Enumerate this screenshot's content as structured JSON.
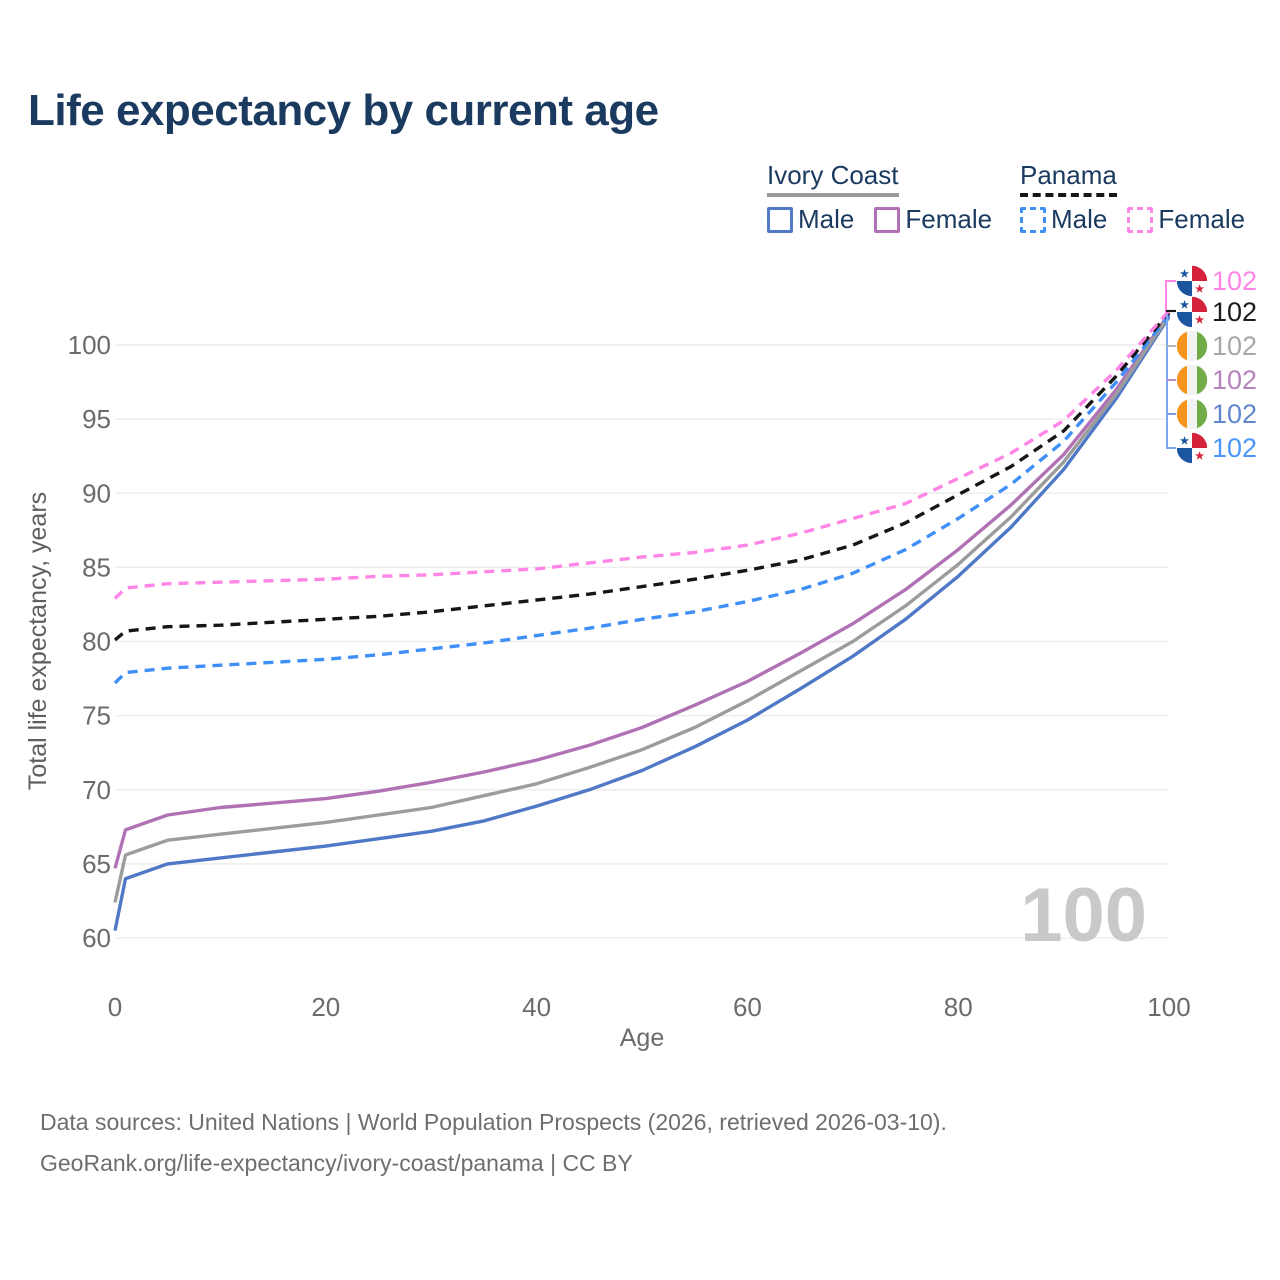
{
  "title": "Life expectancy by current age",
  "legend": {
    "groups": [
      {
        "label": "Ivory Coast",
        "style": "solid",
        "underline_color": "#999999",
        "items": [
          {
            "label": "Male",
            "color": "#4f79c7",
            "dashed": false
          },
          {
            "label": "Female",
            "color": "#b171b5",
            "dashed": false
          }
        ]
      },
      {
        "label": "Panama",
        "style": "dashed",
        "underline_color": "#161616",
        "items": [
          {
            "label": "Male",
            "color": "#3f8ff8",
            "dashed": true
          },
          {
            "label": "Female",
            "color": "#ff85e6",
            "dashed": true
          }
        ]
      }
    ]
  },
  "chart_data": {
    "type": "line",
    "title": "Life expectancy by current age",
    "xlabel": "Age",
    "ylabel": "Total life expectancy, years",
    "xlim": [
      0,
      100
    ],
    "ylim": [
      58,
      103
    ],
    "xticks": [
      0,
      20,
      40,
      60,
      80,
      100
    ],
    "yticks": [
      60,
      65,
      70,
      75,
      80,
      85,
      90,
      95,
      100
    ],
    "grid": "horizontal",
    "legend_position": "top-right",
    "watermark": "100",
    "x": [
      0,
      1,
      5,
      10,
      15,
      20,
      25,
      30,
      35,
      40,
      45,
      50,
      55,
      60,
      65,
      70,
      75,
      80,
      85,
      90,
      95,
      100
    ],
    "series": [
      {
        "name": "Ivory Coast Male",
        "country": "Ivory Coast",
        "sex": "Male",
        "color": "#4f79c7",
        "dashed": false,
        "values": [
          60.5,
          64.0,
          65.0,
          65.4,
          65.8,
          66.2,
          66.7,
          67.2,
          67.9,
          68.9,
          70.0,
          71.3,
          72.9,
          74.7,
          76.8,
          79.0,
          81.5,
          84.4,
          87.7,
          91.6,
          96.4,
          101.9
        ]
      },
      {
        "name": "Ivory Coast Female",
        "country": "Ivory Coast",
        "sex": "Female",
        "color": "#b171b5",
        "dashed": false,
        "values": [
          64.7,
          67.3,
          68.3,
          68.8,
          69.1,
          69.4,
          69.9,
          70.5,
          71.2,
          72.0,
          73.0,
          74.2,
          75.7,
          77.3,
          79.2,
          81.2,
          83.5,
          86.2,
          89.2,
          92.6,
          97.0,
          102.1
        ]
      },
      {
        "name": "Ivory Coast Total",
        "country": "Ivory Coast",
        "sex": "Both",
        "color": "#9c9c9c",
        "dashed": false,
        "values": [
          62.4,
          65.6,
          66.6,
          67.0,
          67.4,
          67.8,
          68.3,
          68.8,
          69.6,
          70.4,
          71.5,
          72.7,
          74.2,
          76.0,
          78.0,
          80.0,
          82.4,
          85.2,
          88.4,
          92.1,
          96.7,
          102.0
        ]
      },
      {
        "name": "Panama Male",
        "country": "Panama",
        "sex": "Male",
        "color": "#3f8ff8",
        "dashed": true,
        "values": [
          77.2,
          77.9,
          78.2,
          78.4,
          78.6,
          78.8,
          79.1,
          79.5,
          79.9,
          80.4,
          80.9,
          81.5,
          82.0,
          82.7,
          83.5,
          84.6,
          86.2,
          88.3,
          90.6,
          93.5,
          97.5,
          102.0
        ]
      },
      {
        "name": "Panama Total",
        "country": "Panama",
        "sex": "Both",
        "color": "#161616",
        "dashed": true,
        "values": [
          80.1,
          80.7,
          81.0,
          81.1,
          81.3,
          81.5,
          81.7,
          82.0,
          82.4,
          82.8,
          83.2,
          83.7,
          84.2,
          84.8,
          85.5,
          86.5,
          88.0,
          89.9,
          91.8,
          94.2,
          97.9,
          102.2
        ]
      },
      {
        "name": "Panama Female",
        "country": "Panama",
        "sex": "Female",
        "color": "#ff85e6",
        "dashed": true,
        "values": [
          82.9,
          83.6,
          83.9,
          84.0,
          84.1,
          84.2,
          84.4,
          84.5,
          84.7,
          84.9,
          85.3,
          85.7,
          86.0,
          86.5,
          87.3,
          88.3,
          89.3,
          91.0,
          92.7,
          94.9,
          98.3,
          102.3
        ]
      }
    ]
  },
  "end_labels": [
    {
      "value": "102",
      "color": "#ff85e6",
      "flag": "panama",
      "series": "Panama Female"
    },
    {
      "value": "102",
      "color": "#1c1c1c",
      "flag": "panama",
      "series": "Panama Total"
    },
    {
      "value": "102",
      "color": "#a8a8a8",
      "flag": "ivory-coast",
      "series": "Ivory Coast Total"
    },
    {
      "value": "102",
      "color": "#b584ba",
      "flag": "ivory-coast",
      "series": "Ivory Coast Female"
    },
    {
      "value": "102",
      "color": "#6188cc",
      "flag": "ivory-coast",
      "series": "Ivory Coast Male"
    },
    {
      "value": "102",
      "color": "#4a97f9",
      "flag": "panama",
      "series": "Panama Male"
    }
  ],
  "footer": {
    "line1": "Data sources: United Nations | World Population Prospects (2026, retrieved 2026-03-10).",
    "line2": "GeoRank.org/life-expectancy/ivory-coast/panama | CC BY"
  }
}
